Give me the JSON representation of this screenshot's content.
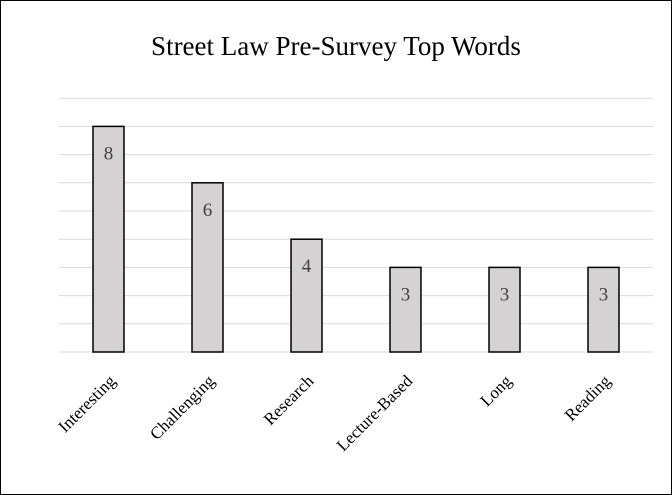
{
  "chart_data": {
    "type": "bar",
    "title": "Street Law Pre-Survey Top Words",
    "categories": [
      "Interesting",
      "Challenging",
      "Research",
      "Lecture-Based",
      "Long",
      "Reading"
    ],
    "values": [
      8,
      6,
      4,
      3,
      3,
      3
    ],
    "ylim": [
      0,
      9
    ],
    "y_axis_visible": false,
    "grid": true,
    "data_labels": true,
    "legend": "none",
    "colors": {
      "bar_fill": "#d4d2d2",
      "bar_stroke": "#000000",
      "gridline": "#d9d9d9",
      "data_label": "#404040"
    }
  }
}
